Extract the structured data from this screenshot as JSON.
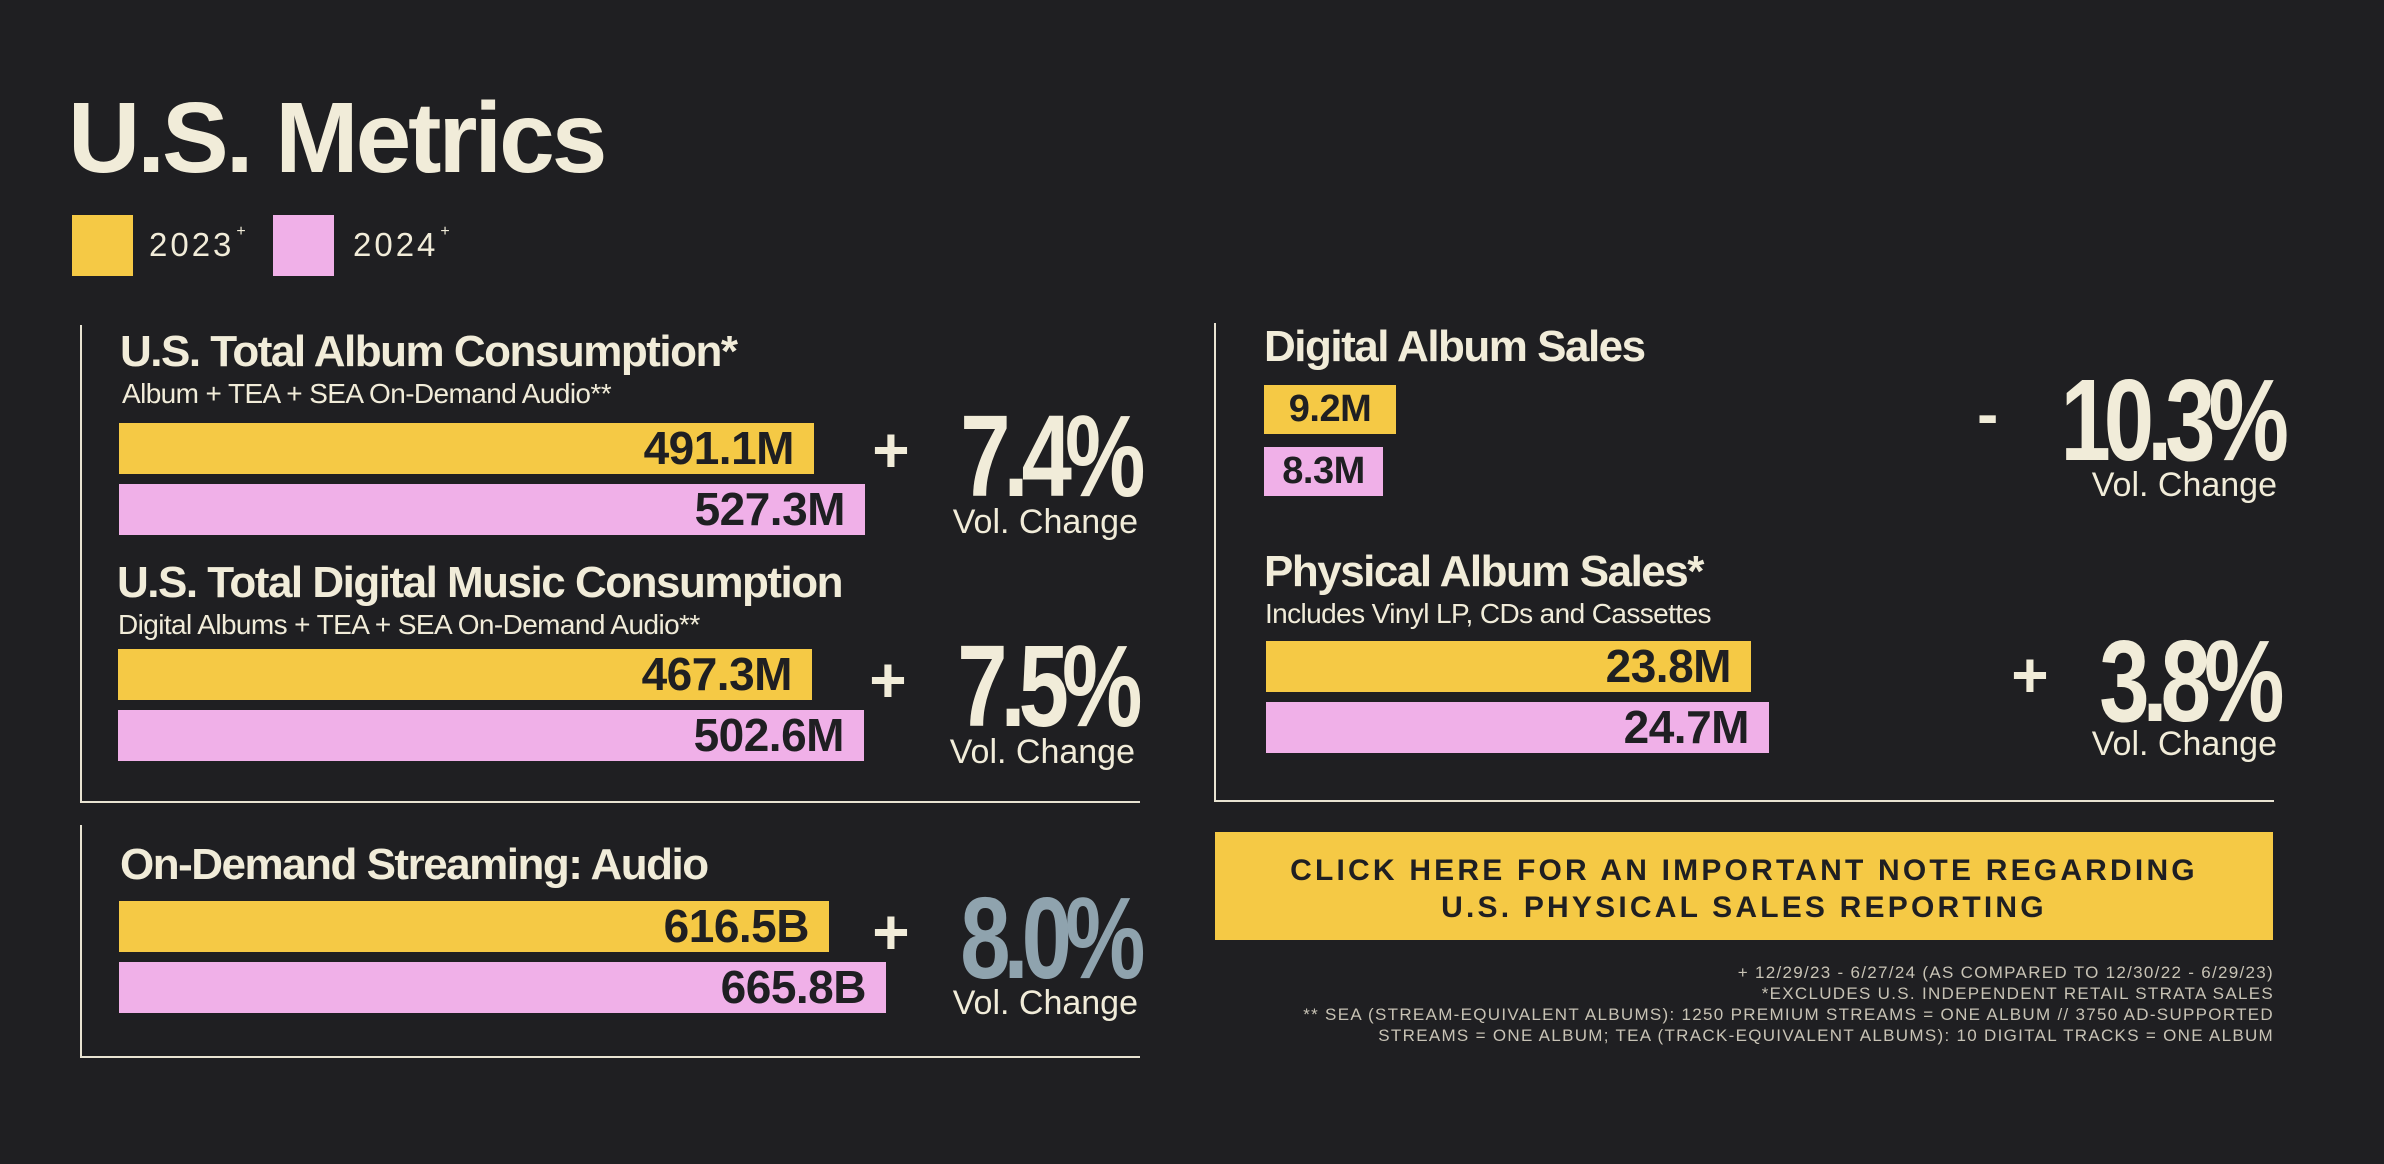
{
  "page": {
    "title": "U.S. Metrics",
    "legend": [
      {
        "label": "2023",
        "mark": "+",
        "color": "#f5c945"
      },
      {
        "label": "2024",
        "mark": "+",
        "color": "#f0b0e8"
      }
    ],
    "change_label": "Vol. Change",
    "cta_line1": "CLICK HERE FOR AN IMPORTANT NOTE REGARDING",
    "cta_line2": "U.S. PHYSICAL SALES REPORTING",
    "footnotes": [
      "+ 12/29/23 - 6/27/24 (AS COMPARED TO 12/30/22 - 6/29/23)",
      "*EXCLUDES U.S. INDEPENDENT RETAIL STRATA SALES",
      "** SEA (STREAM-EQUIVALENT ALBUMS): 1250 PREMIUM STREAMS = ONE ALBUM // 3750 AD-SUPPORTED",
      "STREAMS = ONE ALBUM; TEA (TRACK-EQUIVALENT ALBUMS): 10 DIGITAL TRACKS = ONE ALBUM"
    ]
  },
  "colors": {
    "bg": "#1f1f22",
    "y2023": "#f5c945",
    "y2024": "#f0b0e8",
    "text": "#f1ecd9",
    "highlight": "#8fa3ae"
  },
  "chart_data": [
    {
      "type": "bar",
      "title": "U.S. Total Album Consumption*",
      "subtitle": "Album + TEA + SEA On-Demand Audio**",
      "series": [
        {
          "name": "2023",
          "values": [
            491.1
          ]
        },
        {
          "name": "2024",
          "values": [
            527.3
          ]
        }
      ],
      "value_labels": [
        "491.1M",
        "527.3M"
      ],
      "change_sign": "+",
      "change_value": "7.4%"
    },
    {
      "type": "bar",
      "title": "U.S. Total Digital Music Consumption",
      "subtitle": "Digital Albums + TEA + SEA On-Demand Audio**",
      "series": [
        {
          "name": "2023",
          "values": [
            467.3
          ]
        },
        {
          "name": "2024",
          "values": [
            502.6
          ]
        }
      ],
      "value_labels": [
        "467.3M",
        "502.6M"
      ],
      "change_sign": "+",
      "change_value": "7.5%"
    },
    {
      "type": "bar",
      "title": "On-Demand Streaming: Audio",
      "series": [
        {
          "name": "2023",
          "values": [
            616.5
          ]
        },
        {
          "name": "2024",
          "values": [
            665.8
          ]
        }
      ],
      "value_labels": [
        "616.5B",
        "665.8B"
      ],
      "change_sign": "+",
      "change_value": "8.0%"
    },
    {
      "type": "bar",
      "title": "Digital Album Sales",
      "series": [
        {
          "name": "2023",
          "values": [
            9.2
          ]
        },
        {
          "name": "2024",
          "values": [
            8.3
          ]
        }
      ],
      "value_labels": [
        "9.2M",
        "8.3M"
      ],
      "change_sign": "-",
      "change_value": "10.3%"
    },
    {
      "type": "bar",
      "title": "Physical Album Sales*",
      "subtitle": "Includes Vinyl LP, CDs and Cassettes",
      "series": [
        {
          "name": "2023",
          "values": [
            23.8
          ]
        },
        {
          "name": "2024",
          "values": [
            24.7
          ]
        }
      ],
      "value_labels": [
        "23.8M",
        "24.7M"
      ],
      "change_sign": "+",
      "change_value": "3.8%"
    }
  ]
}
